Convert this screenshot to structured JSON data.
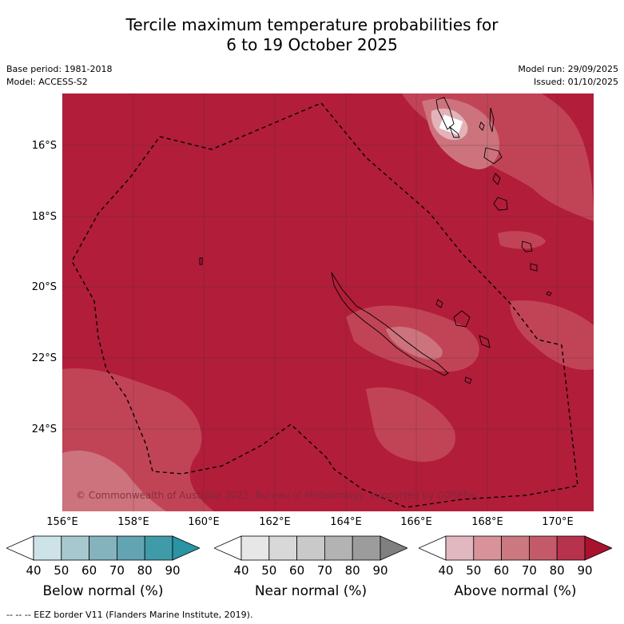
{
  "title_line1": "Tercile maximum temperature probabilities for",
  "title_line2": "6 to 19 October 2025",
  "meta": {
    "base_period": "Base period: 1981-2018",
    "model": "Model: ACCESS-S2",
    "model_run": "Model run: 29/09/2025",
    "issued": "Issued: 01/10/2025"
  },
  "map": {
    "lat_labels": [
      "16°S",
      "18°S",
      "20°S",
      "22°S",
      "24°S"
    ],
    "lon_labels": [
      "156°E",
      "158°E",
      "160°E",
      "162°E",
      "164°E",
      "166°E",
      "168°E",
      "170°E"
    ],
    "copyright": "© Commonwealth of Australia 2025, Bureau of Meteorology, supported by COSPPac",
    "colors": {
      "above_80_90": "#b21d3a",
      "above_70_80": "#c14456",
      "above_60_70": "#cd737d"
    }
  },
  "colorbars": [
    {
      "title": "Below normal (%)",
      "ticks": [
        "40",
        "50",
        "60",
        "70",
        "80",
        "90"
      ],
      "colors": [
        "#ffffff",
        "#cde3e8",
        "#a7c8cf",
        "#84b3bd",
        "#62a4b1",
        "#3f9ba8",
        "#2a93a4"
      ]
    },
    {
      "title": "Near normal (%)",
      "ticks": [
        "40",
        "50",
        "60",
        "70",
        "80",
        "90"
      ],
      "colors": [
        "#ffffff",
        "#e7e7e7",
        "#d8d8d8",
        "#c9c9c9",
        "#b3b3b3",
        "#9c9c9c",
        "#808080"
      ]
    },
    {
      "title": "Above normal (%)",
      "ticks": [
        "40",
        "50",
        "60",
        "70",
        "80",
        "90"
      ],
      "colors": [
        "#ffffff",
        "#e1b8bf",
        "#d8929a",
        "#cc7880",
        "#c45a69",
        "#b7324d",
        "#a9122f"
      ]
    }
  ],
  "legend_footnote": "--  --  -- EEZ border V11 (Flanders Marine Institute, 2019)."
}
